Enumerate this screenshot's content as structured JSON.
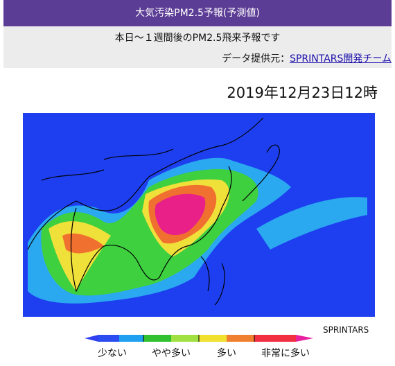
{
  "header": {
    "title": "大気汚染PM2.5予報(予測値)",
    "subtitle": "本日～１週間後のPM2.5飛来予報です",
    "source_prefix": "データ提供元：",
    "source_link": "SPRINTARS開発チーム"
  },
  "datetime": "2019年12月23日12時",
  "credit": "SPRINTARS",
  "legend": {
    "labels": [
      "少ない",
      "やや多い",
      "多い",
      "非常に多い"
    ]
  }
}
